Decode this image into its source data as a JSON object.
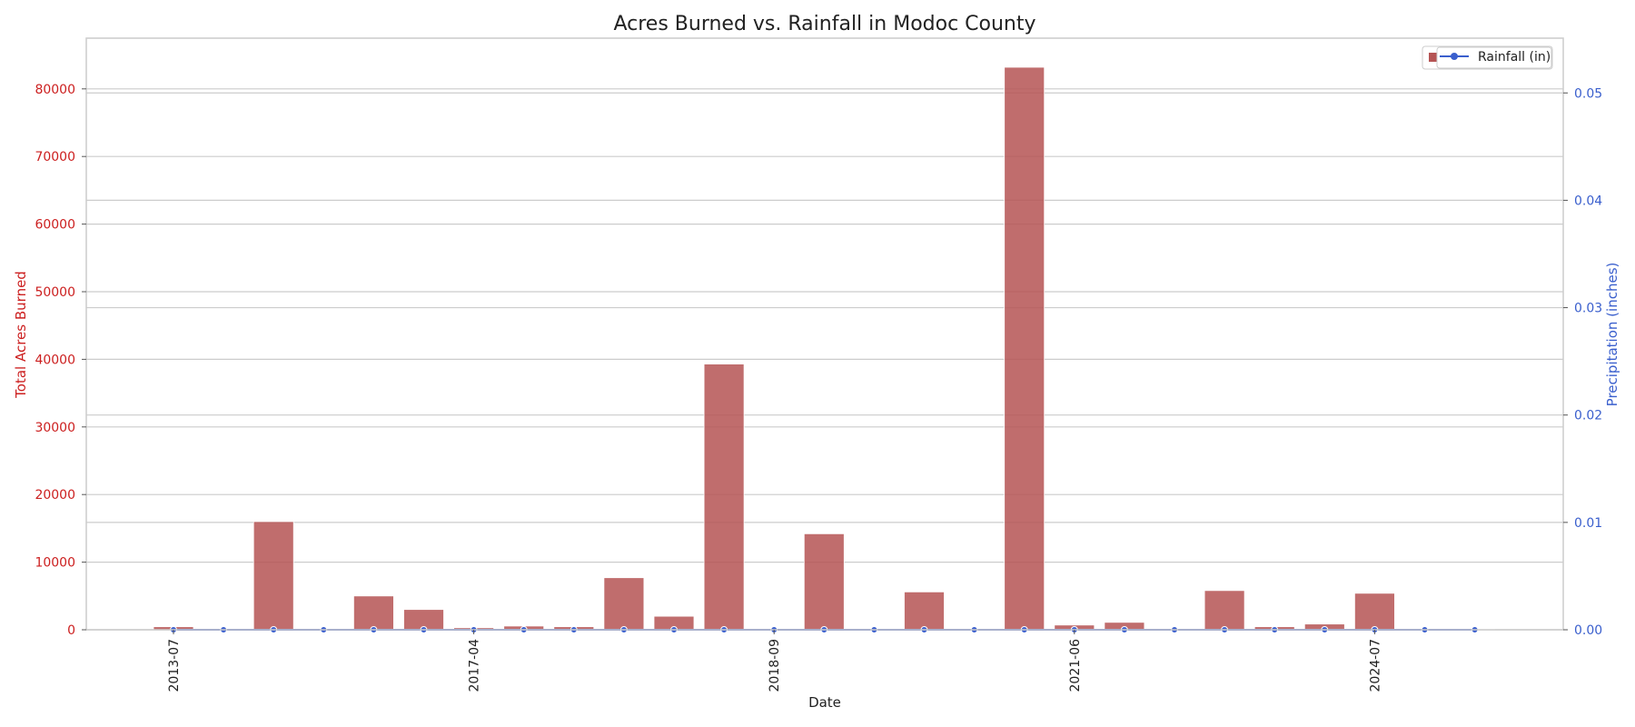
{
  "chart_data": {
    "type": "bar",
    "title": "Acres Burned vs. Rainfall in Modoc County",
    "xlabel": "Date",
    "ylabel_left": "Total Acres Burned",
    "ylabel_right": "Precipitation (inches)",
    "x_tick_labels": [
      "2013-07",
      "2017-04",
      "2018-09",
      "2021-06",
      "2024-07"
    ],
    "x_tick_indices": [
      0,
      6,
      12,
      18,
      24
    ],
    "y_left_ticks": [
      0,
      10000,
      20000,
      30000,
      40000,
      50000,
      60000,
      70000,
      80000
    ],
    "y_left_tick_labels": [
      "0",
      "10000",
      "20000",
      "30000",
      "40000",
      "50000",
      "60000",
      "70000",
      "80000"
    ],
    "y_right_ticks": [
      0.0,
      0.01,
      0.02,
      0.03,
      0.04,
      0.05
    ],
    "y_right_tick_labels": [
      "0.00",
      "0.01",
      "0.02",
      "0.03",
      "0.04",
      "0.05"
    ],
    "ylim_left": [
      0,
      87500
    ],
    "ylim_right": [
      0,
      0.0551
    ],
    "bar_values": [
      450,
      100,
      16000,
      50,
      5000,
      3000,
      300,
      550,
      450,
      7700,
      2000,
      39300,
      50,
      14200,
      50,
      5600,
      50,
      83200,
      700,
      1100,
      100,
      5800,
      450,
      850,
      5400,
      50,
      50
    ],
    "series": [
      {
        "name": "Acres Burned",
        "color": "#b55454"
      },
      {
        "name": "Rainfall (in)",
        "color": "#3a5fcd",
        "values": [
          0,
          0,
          0,
          0,
          0,
          0,
          0,
          0,
          0,
          0,
          0,
          0,
          0,
          0,
          0,
          0,
          0,
          0,
          0,
          0,
          0,
          0,
          0,
          0,
          0,
          0,
          0
        ]
      }
    ],
    "legend_position": "top-right",
    "grid": true,
    "colors": {
      "left_axis": "#cc1f1f",
      "right_axis": "#3a5fcd",
      "grid": "#cccccc"
    }
  }
}
